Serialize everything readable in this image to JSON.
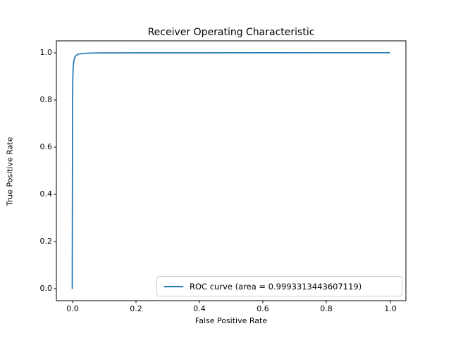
{
  "figure": {
    "background": "#ffffff",
    "title": "Receiver Operating Characteristic",
    "xlabel": "False Positive Rate",
    "ylabel": "True Positive Rate"
  },
  "axes": {
    "x_tick_labels": [
      "0.0",
      "0.2",
      "0.4",
      "0.6",
      "0.8",
      "1.0"
    ],
    "y_tick_labels": [
      "0.0",
      "0.2",
      "0.4",
      "0.6",
      "0.8",
      "1.0"
    ],
    "spine_color": "#000000"
  },
  "legend": {
    "label": "ROC curve (area = 0.9993313443607119)",
    "line_color": "#1f77b4",
    "position": "lower right",
    "border_color": "#cccccc"
  },
  "chart_data": {
    "type": "line",
    "title": "Receiver Operating Characteristic",
    "xlabel": "False Positive Rate",
    "ylabel": "True Positive Rate",
    "xlim": [
      -0.05,
      1.05
    ],
    "ylim": [
      -0.05,
      1.05
    ],
    "grid": false,
    "legend_position": "lower right",
    "auc": 0.9993313443607119,
    "series": [
      {
        "name": "ROC curve (area = 0.9993313443607119)",
        "color": "#1f77b4",
        "x": [
          0,
          0.001,
          0.002,
          0.003,
          0.005,
          0.008,
          0.012,
          0.02,
          0.035,
          0.06,
          0.1,
          0.2,
          0.4,
          0.6,
          0.8,
          1.0
        ],
        "y": [
          0,
          0.8,
          0.9,
          0.94,
          0.965,
          0.98,
          0.988,
          0.994,
          0.997,
          0.9985,
          0.999,
          0.9993,
          0.9995,
          0.9997,
          0.9999,
          1.0
        ]
      }
    ]
  }
}
